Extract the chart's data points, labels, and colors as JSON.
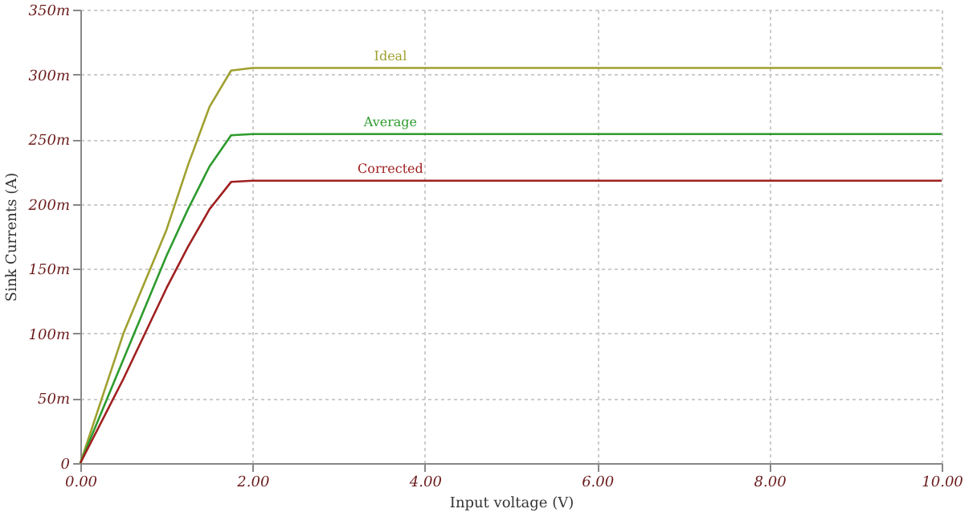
{
  "chart_data": {
    "type": "line",
    "xlabel": "Input voltage (V)",
    "ylabel": "Sink Currents (A)",
    "xlim": [
      0,
      10
    ],
    "xticks": [
      {
        "value": 0,
        "label": "0.00"
      },
      {
        "value": 2,
        "label": "2.00"
      },
      {
        "value": 4,
        "label": "4.00"
      },
      {
        "value": 6,
        "label": "6.00"
      },
      {
        "value": 8,
        "label": "8.00"
      },
      {
        "value": 10,
        "label": "10.00"
      }
    ],
    "ylim": [
      0,
      350
    ],
    "yticks": [
      0,
      {
        "value": 50,
        "label": "50m"
      },
      {
        "value": 100,
        "label": "100m"
      },
      {
        "value": 150,
        "label": "150m"
      },
      {
        "value": 200,
        "label": "200m"
      },
      {
        "value": 250,
        "label": "250m"
      },
      {
        "value": 300,
        "label": "300m"
      },
      {
        "value": 350,
        "label": "350m"
      }
    ],
    "grid": true,
    "marker": "none",
    "line_style": "solid",
    "x": [
      0,
      0.5,
      1.0,
      1.25,
      1.5,
      1.75,
      2,
      10
    ],
    "series": [
      {
        "name": "Ideal",
        "color": "#a0a030",
        "values": [
          0,
          100,
          180,
          230,
          275,
          303,
          305,
          305
        ]
      },
      {
        "name": "Average",
        "color": "#2e9b2e",
        "values": [
          0,
          80,
          160,
          196,
          229,
          253,
          254,
          254
        ]
      },
      {
        "name": "Corrected",
        "color": "#a02020",
        "values": [
          0,
          65,
          135,
          167,
          196,
          217,
          218,
          218
        ]
      }
    ]
  }
}
